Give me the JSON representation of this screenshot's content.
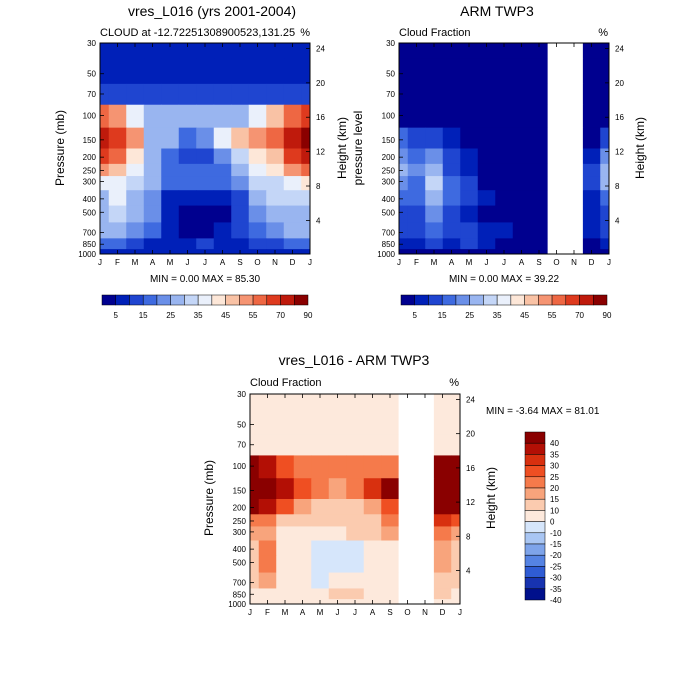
{
  "months": [
    "J",
    "F",
    "M",
    "A",
    "M",
    "J",
    "J",
    "A",
    "S",
    "O",
    "N",
    "D",
    "J"
  ],
  "pressure_ticks": [
    {
      "label": "30",
      "value": 30
    },
    {
      "label": "50",
      "value": 50
    },
    {
      "label": "70",
      "value": 70
    },
    {
      "label": "100",
      "value": 100
    },
    {
      "label": "150",
      "value": 150
    },
    {
      "label": "200",
      "value": 200
    },
    {
      "label": "250",
      "value": 250
    },
    {
      "label": "300",
      "value": 300
    },
    {
      "label": "400",
      "value": 400
    },
    {
      "label": "500",
      "value": 500
    },
    {
      "label": "700",
      "value": 700
    },
    {
      "label": "850",
      "value": 850
    },
    {
      "label": "1000",
      "value": 1000
    }
  ],
  "height_ticks": [
    "24",
    "20",
    "16",
    "12",
    "8",
    "4"
  ],
  "panels": {
    "model": {
      "title": "vres_L016 (yrs 2001-2004)",
      "left_label": "CLOUD at -12.72251308900523,131.25",
      "right_label": "%",
      "ylabel": "Pressure (mb)",
      "y2label": "Height (km)",
      "minmax": "MIN =   0.00 MAX =  85.30"
    },
    "obs": {
      "title": "ARM TWP3",
      "left_label": "Cloud Fraction",
      "right_label": "%",
      "ylabel": "pressure level",
      "y2label": "Height (km)",
      "minmax": "MIN =   0.00 MAX =  39.22"
    },
    "diff": {
      "title": "vres_L016 - ARM TWP3",
      "left_label": "Cloud Fraction",
      "right_label": "%",
      "ylabel": "Pressure (mb)",
      "y2label": "Height (km)",
      "minmax": "MIN =  -3.64 MAX =  81.01"
    }
  },
  "colorbar_abs": {
    "labels": [
      "5",
      "15",
      "25",
      "35",
      "45",
      "55",
      "70",
      "90"
    ],
    "colors": [
      "#00008f",
      "#0020b8",
      "#1f45d0",
      "#3e6ae0",
      "#6a8fe8",
      "#99b5f0",
      "#c4d6f7",
      "#eaf0fb",
      "#fde7d8",
      "#f9c2a5",
      "#f59472",
      "#ee6743",
      "#de3a1e",
      "#bf1a0c",
      "#8a0000"
    ]
  },
  "colorbar_diff": {
    "labels": [
      "40",
      "35",
      "30",
      "25",
      "20",
      "15",
      "10",
      "0",
      "-10",
      "-15",
      "-20",
      "-25",
      "-30",
      "-35",
      "-40"
    ],
    "colors": [
      "#8a0000",
      "#b30f05",
      "#d8300f",
      "#ef4f22",
      "#f57a4b",
      "#f8a47c",
      "#fbcbaf",
      "#fde9dc",
      "#d6e6fb",
      "#a9c6f3",
      "#7ea4ea",
      "#5583e3",
      "#2f5cd4",
      "#1733b0",
      "#00108c"
    ]
  },
  "chart_data": [
    {
      "type": "heatmap",
      "title": "vres_L016 (yrs 2001-2004)",
      "subtitle": "CLOUD at -12.72251308900523,131.25",
      "xlabel": "",
      "ylabel": "Pressure (mb)",
      "y2label": "Height (km)",
      "x": [
        "J",
        "F",
        "M",
        "A",
        "M",
        "J",
        "J",
        "A",
        "S",
        "O",
        "N",
        "D",
        "J"
      ],
      "y": [
        30,
        50,
        70,
        100,
        150,
        200,
        250,
        300,
        400,
        500,
        700,
        850,
        1000
      ],
      "units": "%",
      "values": [
        [
          8,
          8,
          8,
          8,
          8,
          8,
          8,
          8,
          8,
          8,
          8,
          8,
          8
        ],
        [
          8,
          8,
          8,
          8,
          8,
          8,
          8,
          8,
          8,
          8,
          8,
          8,
          8
        ],
        [
          10,
          10,
          10,
          10,
          10,
          10,
          10,
          10,
          10,
          10,
          10,
          10,
          10
        ],
        [
          55,
          50,
          35,
          25,
          25,
          25,
          28,
          28,
          28,
          35,
          45,
          55,
          60
        ],
        [
          78,
          65,
          50,
          28,
          25,
          18,
          20,
          35,
          48,
          50,
          55,
          70,
          80
        ],
        [
          68,
          55,
          40,
          25,
          18,
          12,
          12,
          20,
          30,
          40,
          45,
          65,
          70
        ],
        [
          50,
          45,
          35,
          25,
          18,
          15,
          15,
          18,
          25,
          35,
          40,
          50,
          55
        ],
        [
          38,
          38,
          32,
          25,
          15,
          15,
          15,
          15,
          22,
          30,
          32,
          38,
          42
        ],
        [
          28,
          36,
          28,
          20,
          8,
          5,
          5,
          6,
          12,
          25,
          30,
          30,
          30
        ],
        [
          25,
          34,
          28,
          20,
          5,
          2,
          2,
          3,
          10,
          22,
          28,
          25,
          25
        ],
        [
          25,
          28,
          22,
          15,
          6,
          4,
          4,
          6,
          12,
          18,
          22,
          25,
          25
        ],
        [
          15,
          15,
          12,
          8,
          5,
          8,
          10,
          8,
          8,
          10,
          12,
          15,
          15
        ],
        [
          8,
          8,
          8,
          8,
          8,
          8,
          8,
          8,
          8,
          8,
          8,
          8,
          8
        ]
      ],
      "zmin": 0.0,
      "zmax": 85.3,
      "levels": [
        5,
        10,
        15,
        20,
        25,
        30,
        35,
        40,
        45,
        50,
        55,
        60,
        70,
        80,
        90
      ]
    },
    {
      "type": "heatmap",
      "title": "ARM TWP3",
      "subtitle": "Cloud Fraction",
      "xlabel": "",
      "ylabel": "pressure level",
      "y2label": "Height (km)",
      "x": [
        "J",
        "F",
        "M",
        "A",
        "M",
        "J",
        "J",
        "A",
        "S",
        "O",
        "N",
        "D",
        "J"
      ],
      "y": [
        30,
        50,
        70,
        100,
        150,
        200,
        250,
        300,
        400,
        500,
        700,
        850,
        1000
      ],
      "units": "%",
      "missing_months": [
        "O"
      ],
      "values": [
        [
          2,
          2,
          2,
          2,
          2,
          2,
          2,
          2,
          2,
          null,
          null,
          2,
          2
        ],
        [
          2,
          2,
          2,
          2,
          2,
          2,
          2,
          2,
          2,
          null,
          null,
          2,
          2
        ],
        [
          2,
          2,
          2,
          2,
          2,
          2,
          2,
          2,
          2,
          null,
          null,
          2,
          2
        ],
        [
          4,
          4,
          3,
          2,
          2,
          2,
          2,
          2,
          2,
          null,
          null,
          2,
          4
        ],
        [
          15,
          14,
          10,
          6,
          4,
          3,
          3,
          3,
          3,
          null,
          null,
          4,
          14
        ],
        [
          22,
          18,
          20,
          12,
          5,
          3,
          3,
          3,
          3,
          null,
          null,
          8,
          22
        ],
        [
          25,
          20,
          28,
          14,
          8,
          4,
          3,
          3,
          3,
          null,
          null,
          10,
          28
        ],
        [
          22,
          18,
          30,
          16,
          10,
          4,
          3,
          3,
          3,
          null,
          null,
          12,
          25
        ],
        [
          18,
          15,
          26,
          15,
          10,
          5,
          3,
          3,
          3,
          null,
          null,
          8,
          18
        ],
        [
          14,
          12,
          20,
          12,
          8,
          4,
          3,
          3,
          3,
          null,
          null,
          6,
          14
        ],
        [
          12,
          10,
          15,
          10,
          14,
          8,
          5,
          3,
          3,
          null,
          null,
          5,
          12
        ],
        [
          8,
          7,
          10,
          8,
          10,
          6,
          4,
          3,
          3,
          null,
          null,
          4,
          8
        ],
        [
          3,
          3,
          3,
          3,
          3,
          3,
          3,
          3,
          3,
          null,
          null,
          3,
          3
        ]
      ],
      "zmin": 0.0,
      "zmax": 39.22,
      "levels": [
        5,
        10,
        15,
        20,
        25,
        30,
        35,
        40,
        45,
        50,
        55,
        60,
        70,
        80,
        90
      ]
    },
    {
      "type": "heatmap",
      "title": "vres_L016 - ARM TWP3",
      "subtitle": "Cloud Fraction",
      "xlabel": "",
      "ylabel": "Pressure (mb)",
      "y2label": "Height (km)",
      "x": [
        "J",
        "F",
        "M",
        "A",
        "M",
        "J",
        "J",
        "A",
        "S",
        "O",
        "N",
        "D",
        "J"
      ],
      "y": [
        30,
        50,
        70,
        100,
        150,
        200,
        250,
        300,
        400,
        500,
        700,
        850,
        1000
      ],
      "units": "%",
      "missing_months": [
        "O"
      ],
      "values": [
        [
          2,
          2,
          2,
          2,
          2,
          2,
          2,
          2,
          2,
          null,
          null,
          2,
          2
        ],
        [
          5,
          5,
          5,
          5,
          5,
          5,
          5,
          5,
          5,
          null,
          null,
          5,
          5
        ],
        [
          8,
          8,
          8,
          8,
          8,
          8,
          8,
          8,
          8,
          null,
          null,
          8,
          8
        ],
        [
          40,
          38,
          28,
          22,
          20,
          22,
          24,
          24,
          24,
          null,
          null,
          40,
          42
        ],
        [
          48,
          45,
          38,
          25,
          22,
          18,
          22,
          30,
          40,
          null,
          null,
          48,
          48
        ],
        [
          42,
          38,
          25,
          15,
          12,
          10,
          10,
          18,
          25,
          null,
          null,
          45,
          45
        ],
        [
          20,
          22,
          12,
          12,
          10,
          10,
          10,
          14,
          20,
          null,
          null,
          30,
          25
        ],
        [
          15,
          16,
          5,
          8,
          5,
          8,
          10,
          10,
          15,
          null,
          null,
          22,
          18
        ],
        [
          12,
          20,
          5,
          5,
          -2,
          -3,
          -2,
          2,
          8,
          null,
          null,
          18,
          12
        ],
        [
          14,
          22,
          8,
          8,
          -2,
          -2,
          -3,
          2,
          6,
          null,
          null,
          15,
          12
        ],
        [
          10,
          18,
          5,
          4,
          -1,
          2,
          2,
          4,
          8,
          null,
          null,
          14,
          12
        ],
        [
          6,
          6,
          4,
          2,
          4,
          10,
          10,
          6,
          4,
          null,
          null,
          10,
          6
        ],
        [
          4,
          4,
          4,
          4,
          4,
          4,
          4,
          4,
          4,
          null,
          null,
          4,
          4
        ]
      ],
      "zmin": -3.64,
      "zmax": 81.01,
      "levels": [
        -40,
        -35,
        -30,
        -25,
        -20,
        -15,
        -10,
        0,
        10,
        15,
        20,
        25,
        30,
        35,
        40
      ]
    }
  ]
}
